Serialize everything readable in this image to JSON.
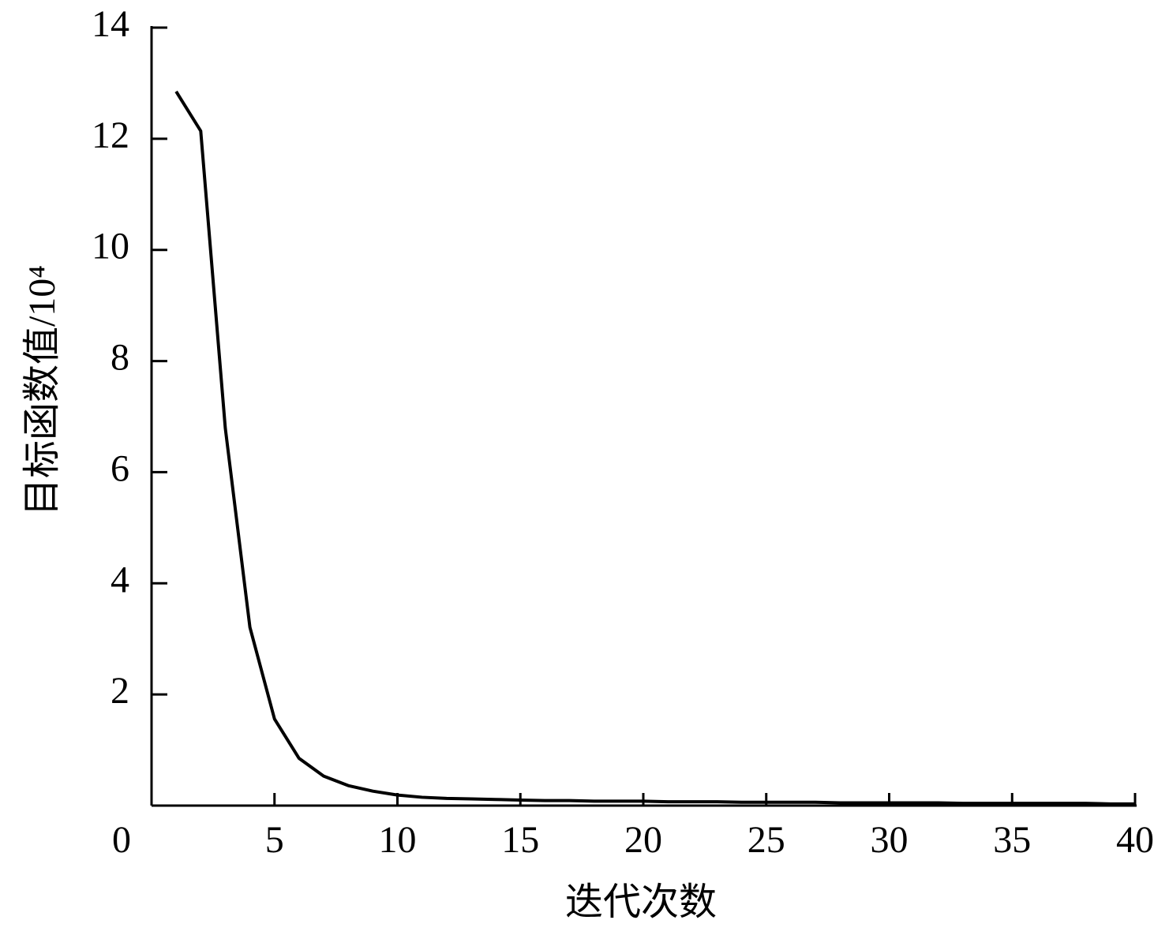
{
  "chart_data": {
    "type": "line",
    "x_label": "迭代次数",
    "y_label": "目标函数值/10⁴",
    "x": [
      1,
      2,
      3,
      4,
      5,
      6,
      7,
      8,
      9,
      10,
      11,
      12,
      13,
      14,
      15,
      16,
      17,
      18,
      19,
      20,
      21,
      22,
      23,
      24,
      25,
      26,
      27,
      28,
      29,
      30,
      31,
      32,
      33,
      34,
      35,
      36,
      37,
      38,
      39,
      40
    ],
    "values": [
      12.85,
      12.14,
      6.79,
      3.21,
      1.56,
      0.85,
      0.53,
      0.36,
      0.26,
      0.19,
      0.15,
      0.13,
      0.12,
      0.11,
      0.1,
      0.09,
      0.09,
      0.08,
      0.08,
      0.08,
      0.07,
      0.07,
      0.07,
      0.06,
      0.06,
      0.06,
      0.06,
      0.05,
      0.05,
      0.05,
      0.05,
      0.05,
      0.04,
      0.04,
      0.04,
      0.04,
      0.04,
      0.04,
      0.03,
      0.03
    ],
    "color": "#000000",
    "xlim": [
      0,
      40
    ],
    "xticks": [
      0,
      5,
      10,
      15,
      20,
      25,
      30,
      35,
      40
    ],
    "ylim": [
      0,
      14
    ],
    "yticks": [
      2,
      4,
      6,
      8,
      10,
      12,
      14
    ],
    "grid": false
  }
}
